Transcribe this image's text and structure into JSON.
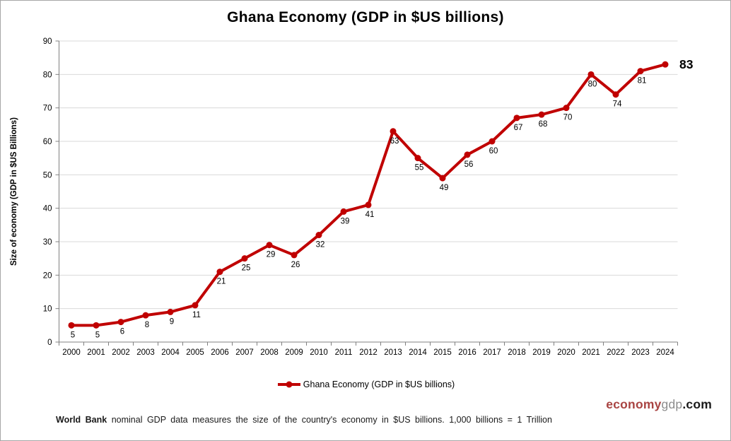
{
  "window": {
    "background": "#ffffff",
    "border_color": "#a6a6a6"
  },
  "chart_data": {
    "type": "line",
    "title": "Ghana Economy (GDP in $US billions)",
    "series": [
      {
        "name": "Ghana Economy (GDP in $US billions)",
        "values": [
          5,
          5,
          6,
          8,
          9,
          11,
          21,
          25,
          29,
          26,
          32,
          39,
          41,
          63,
          55,
          49,
          56,
          60,
          67,
          68,
          70,
          80,
          74,
          81,
          83
        ]
      }
    ],
    "categories": [
      "2000",
      "2001",
      "2002",
      "2003",
      "2004",
      "2005",
      "2006",
      "2007",
      "2008",
      "2009",
      "2010",
      "2011",
      "2012",
      "2013",
      "2014",
      "2015",
      "2016",
      "2017",
      "2018",
      "2019",
      "2020",
      "2021",
      "2022",
      "2023",
      "2024"
    ],
    "xlabel": "",
    "ylabel": "Size of economy (GDP in $US Billions)",
    "ylim": [
      0,
      90
    ],
    "ytick_step": 10,
    "grid": true,
    "legend_position": "bottom-center",
    "data_labels": true,
    "last_point_label_emphasized": true,
    "line_color": "#c00000",
    "marker_color": "#c00000",
    "grid_color": "#d9d9d9",
    "axis_color": "#808080",
    "tick_label_color": "#000000",
    "data_label_color": "#000000"
  },
  "legend": {
    "label": "Ghana Economy (GDP in $US billions)"
  },
  "footer": {
    "bold_prefix": "World Bank",
    "text": " nominal GDP data  measures the size of the country's economy in $US billions. 1,000 billions = 1 Trillion"
  },
  "branding": {
    "part1": "economy",
    "part2": "gdp",
    "part3": ".com",
    "color1": "#a94442",
    "color2": "#8c8c8c",
    "color3": "#1a1a1a"
  }
}
